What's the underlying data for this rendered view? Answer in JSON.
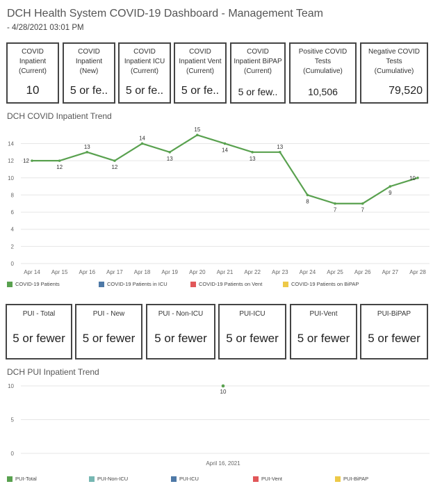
{
  "header": {
    "title": "DCH Health System COVID-19 Dashboard - Management Team",
    "subtitle": "- 4/28/2021 03:01 PM"
  },
  "kpis_top": [
    {
      "label": "COVID\nInpatient\n(Current)",
      "value": "10"
    },
    {
      "label": "COVID\nInpatient\n(New)",
      "value": "5 or fe.."
    },
    {
      "label": "COVID\nInpatient ICU\n(Current)",
      "value": "5 or fe.."
    },
    {
      "label": "COVID\nInpatient Vent\n(Current)",
      "value": "5 or fe.."
    },
    {
      "label": "COVID\nInpatient BiPAP\n(Current)",
      "value": "5 or few.."
    },
    {
      "label": "Positive COVID\nTests\n(Cumulative)",
      "value": "10,506"
    },
    {
      "label": "Negative COVID\nTests\n(Cumulative)",
      "value": "79,520"
    }
  ],
  "kpis_pui": [
    {
      "label": "PUI - Total",
      "value": "5 or fewer"
    },
    {
      "label": "PUI - New",
      "value": "5 or fewer"
    },
    {
      "label": "PUI - Non-ICU",
      "value": "5 or fewer"
    },
    {
      "label": "PUI-ICU",
      "value": "5 or fewer"
    },
    {
      "label": "PUI-Vent",
      "value": "5 or fewer"
    },
    {
      "label": "PUI-BiPAP",
      "value": "5 or fewer"
    }
  ],
  "colors": {
    "green": "#59a14f",
    "blue": "#4e79a7",
    "red": "#e15759",
    "yellow": "#edc948",
    "teal": "#76b7b2",
    "grid": "#e6e6e6"
  },
  "chart_data": [
    {
      "type": "line",
      "title": "DCH COVID Inpatient Trend",
      "categories": [
        "Apr 14",
        "Apr 15",
        "Apr 16",
        "Apr 17",
        "Apr 18",
        "Apr 19",
        "Apr 20",
        "Apr 21",
        "Apr 22",
        "Apr 23",
        "Apr 24",
        "Apr 25",
        "Apr 26",
        "Apr 27",
        "Apr 28"
      ],
      "series": [
        {
          "name": "COVID-19 Patients",
          "values": [
            12,
            12,
            13,
            12,
            14,
            13,
            15,
            14,
            13,
            13,
            8,
            7,
            7,
            9,
            10
          ]
        }
      ],
      "legend": [
        "COVID-19 Patients",
        "COVID-19 Patients in ICU",
        "COVID-19 Patients on Vent",
        "COVID-19 Patients on BiPAP"
      ],
      "legend_colors": [
        "#59a14f",
        "#4e79a7",
        "#e15759",
        "#edc948"
      ],
      "yticks": [
        0,
        2,
        4,
        6,
        8,
        10,
        12,
        14
      ],
      "ylim": [
        0,
        15.5
      ],
      "grid": true,
      "legend_position": "bottom"
    },
    {
      "type": "scatter",
      "title": "DCH PUI Inpatient Trend",
      "categories": [
        "April 16, 2021"
      ],
      "series": [
        {
          "name": "PUI-Total",
          "values": [
            10
          ]
        }
      ],
      "legend": [
        "PUI-Total",
        "PUI-Non-ICU",
        "PUI-ICU",
        "PUI-Vent",
        "PUI-BiPAP"
      ],
      "legend_colors": [
        "#59a14f",
        "#76b7b2",
        "#4e79a7",
        "#e15759",
        "#edc948"
      ],
      "yticks": [
        0,
        5,
        10
      ],
      "ylim": [
        0,
        10
      ],
      "grid": true,
      "legend_position": "bottom"
    }
  ]
}
